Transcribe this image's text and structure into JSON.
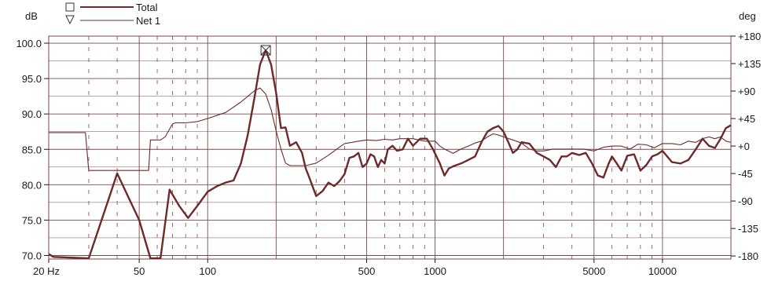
{
  "chart_data": {
    "type": "line",
    "title": "",
    "xscale": "log",
    "xlim": [
      20,
      20000
    ],
    "ylim": [
      69.5,
      101
    ],
    "y2lim": [
      -185,
      180
    ],
    "xlabel": "",
    "ylabel": "dB",
    "y2label": "deg",
    "x_ticks": [
      {
        "value": 20,
        "label": "20 Hz"
      },
      {
        "value": 50,
        "label": "50"
      },
      {
        "value": 100,
        "label": "100"
      },
      {
        "value": 500,
        "label": "500"
      },
      {
        "value": 1000,
        "label": "1000"
      },
      {
        "value": 5000,
        "label": "5000"
      },
      {
        "value": 10000,
        "label": "10000"
      }
    ],
    "y_ticks": [
      "70.0",
      "75.0",
      "80.0",
      "85.0",
      "90.0",
      "95.0",
      "100.0"
    ],
    "y2_ticks": [
      "-180",
      "-135",
      "-90",
      "-45",
      "+0",
      "+45",
      "+90",
      "+135",
      "+180"
    ],
    "grid": true,
    "legend_position": "top-left",
    "colors": {
      "series": "#6e2a2a",
      "grid": "#7a4a4a",
      "text": "#1a1a1a"
    },
    "series": [
      {
        "name": "Total",
        "marker": "square",
        "axis": "left-dB",
        "x": [
          20,
          21,
          30,
          35,
          40,
          50,
          56,
          62,
          68,
          75,
          82,
          90,
          100,
          110,
          120,
          130,
          140,
          150,
          160,
          170,
          180,
          190,
          200,
          210,
          220,
          230,
          245,
          260,
          270,
          280,
          300,
          320,
          340,
          360,
          380,
          400,
          420,
          440,
          460,
          480,
          500,
          520,
          540,
          560,
          580,
          600,
          620,
          650,
          680,
          720,
          760,
          800,
          860,
          920,
          980,
          1000,
          1050,
          1100,
          1150,
          1200,
          1300,
          1400,
          1500,
          1600,
          1700,
          1800,
          1900,
          2000,
          2100,
          2200,
          2300,
          2400,
          2600,
          2800,
          3000,
          3200,
          3400,
          3600,
          3800,
          4000,
          4300,
          4600,
          4900,
          5200,
          5500,
          5800,
          6000,
          6300,
          6600,
          7000,
          7500,
          8000,
          8500,
          9000,
          9500,
          10000,
          11000,
          12000,
          13000,
          14000,
          15000,
          16000,
          17000,
          18000,
          19000,
          20000
        ],
        "y": [
          70.2,
          69.8,
          69.6,
          76,
          81.6,
          75,
          69.6,
          69.6,
          79.3,
          77,
          75.3,
          77,
          79,
          79.8,
          80.3,
          80.6,
          83,
          87,
          92,
          97,
          99,
          97,
          93,
          88,
          88.1,
          85.5,
          86,
          84.5,
          82.3,
          81,
          78.4,
          79.1,
          80.3,
          79.8,
          80.5,
          81.5,
          83.8,
          84,
          84.5,
          82.5,
          83,
          84.3,
          84,
          82.5,
          83.5,
          83,
          85,
          85.5,
          84.8,
          85,
          86.5,
          85.5,
          86.5,
          86.5,
          85,
          84.4,
          83,
          81.3,
          82.3,
          82.6,
          83,
          83.5,
          84,
          86,
          87.5,
          88,
          88.3,
          87.5,
          86,
          84.5,
          85,
          86,
          85.8,
          84.5,
          84,
          83.5,
          82.5,
          84,
          84,
          84.5,
          84.2,
          84.5,
          83,
          81.3,
          81,
          83,
          84,
          83,
          82,
          84.1,
          84.3,
          82,
          82.8,
          84,
          84.3,
          84.8,
          83.2,
          83,
          83.5,
          85,
          86.5,
          85.5,
          85.2,
          86.5,
          88,
          88.4
        ]
      },
      {
        "name": "Net 1",
        "marker": "triangle",
        "axis": "right-deg",
        "x": [
          20,
          27,
          29,
          30,
          50,
          53,
          55,
          56,
          60,
          62,
          65,
          70,
          72,
          80,
          90,
          100,
          120,
          140,
          160,
          170,
          180,
          190,
          200,
          210,
          220,
          230,
          250,
          270,
          300,
          340,
          370,
          400,
          430,
          460,
          500,
          550,
          600,
          650,
          700,
          750,
          800,
          850,
          900,
          950,
          1000,
          1050,
          1100,
          1200,
          1300,
          1400,
          1500,
          1600,
          1700,
          1800,
          1900,
          2000,
          2200,
          2400,
          2600,
          2800,
          3000,
          3300,
          3600,
          4000,
          4500,
          5000,
          5500,
          6000,
          6600,
          7200,
          7800,
          8500,
          9200,
          10000,
          11000,
          12000,
          13000,
          14000,
          15000,
          16000,
          17000,
          18000,
          19000,
          20000
        ],
        "y": [
          22,
          22,
          22,
          -40,
          -40,
          -40,
          -40,
          10,
          10,
          10,
          15,
          36,
          38,
          38,
          40,
          45,
          55,
          72,
          90,
          95,
          85,
          60,
          25,
          -5,
          -28,
          -32,
          -32,
          -32,
          -28,
          -15,
          -5,
          4,
          6,
          8,
          10,
          9,
          11,
          10,
          12,
          12,
          12,
          10,
          8,
          8,
          8,
          0,
          -5,
          -12,
          -5,
          0,
          5,
          8,
          15,
          20,
          18,
          15,
          10,
          5,
          -5,
          -8,
          -8,
          -5,
          -5,
          -5,
          -5,
          -8,
          -2,
          0,
          0,
          -5,
          3,
          2,
          -3,
          4,
          4,
          2,
          8,
          6,
          12,
          15,
          12,
          15,
          8,
          6
        ]
      }
    ]
  }
}
